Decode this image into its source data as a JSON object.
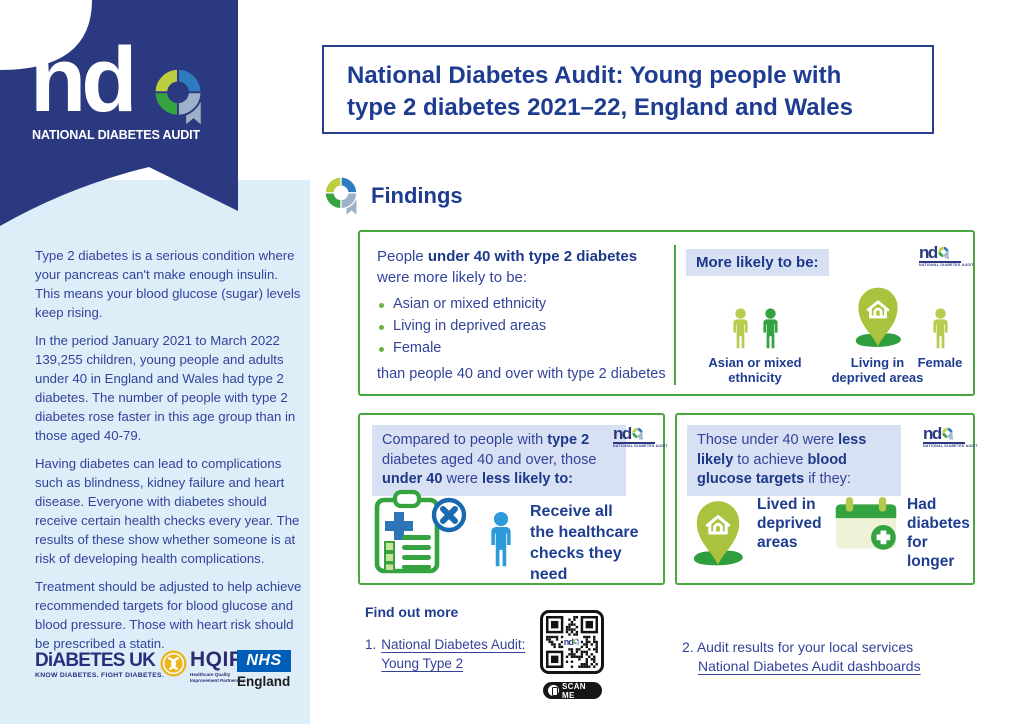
{
  "colors": {
    "navy": "#2b3a80",
    "text": "#33439a",
    "head": "#1e3d90",
    "light_blue": "#ddeef9",
    "highlight": "#d8e1f4",
    "green_border": "#4aa63f",
    "green_dark": "#35a33f",
    "green_light": "#b5c94c",
    "pin_green": "#a9c33e",
    "blue_icon": "#2d9ad9",
    "blue_dark": "#1a6ab1",
    "nhs_blue": "#005eb8",
    "hqip_gold": "#eab51e",
    "gray_quad": "#9fb0c9"
  },
  "brand": {
    "nd": "nd",
    "caption": "NATIONAL DIABETES AUDIT"
  },
  "header": {
    "line1": "National Diabetes Audit: Young people with",
    "line2": "type 2 diabetes 2021–22, England and Wales"
  },
  "findings_heading": "Findings",
  "sidebar": {
    "paragraphs": [
      "Type 2 diabetes is a serious condition where your pancreas can't make enough insulin. This means your blood glucose (sugar) levels keep rising.",
      "In the period January 2021 to March 2022 139,255 children, young people and adults under 40 in England and Wales had type 2 diabetes. The number of people with type 2 diabetes rose faster in this age group than in those aged 40-79.",
      "Having diabetes can lead to complications such as blindness, kidney failure and heart disease. Everyone with diabetes should receive certain health checks every year. The results of these show whether someone is at risk of developing health complications.",
      "Treatment should be adjusted to help achieve recommended targets for blood glucose and blood pressure. Those with heart risk should be prescribed a statin."
    ],
    "partners": {
      "diabetes_uk": {
        "name": "DiABETES UK",
        "tagline": "KNOW DIABETES. FIGHT DIABETES."
      },
      "hqip": {
        "name": "HQIP",
        "subtitle_line1": "Healthcare Quality",
        "subtitle_line2": "Improvement Partnership"
      },
      "nhs": {
        "name": "NHS",
        "region": "England"
      }
    }
  },
  "box_more_likely": {
    "intro": [
      "People ",
      "under 40 with type 2 diabetes"
    ],
    "intro_line2": "were more likely to be:",
    "bullets": [
      "Asian or mixed ethnicity",
      "Living in deprived areas",
      "Female"
    ],
    "footer": "than people 40 and over with type 2 diabetes",
    "heading": "More likely to be:",
    "labels": [
      {
        "line1": "Asian or mixed",
        "line2": "ethnicity"
      },
      {
        "line1": "Living in",
        "line2": "deprived areas"
      },
      {
        "line1": "Female",
        "line2": ""
      }
    ]
  },
  "box_checks": {
    "heading": [
      "Compared to people with ",
      "type 2",
      " diabetes aged 40 and over, those ",
      "under 40",
      " were ",
      "less likely to:"
    ],
    "label": [
      "Receive all",
      "the healthcare",
      "checks they need"
    ]
  },
  "box_glucose": {
    "heading": [
      "Those under 40 were ",
      "less likely",
      " to achieve ",
      "blood glucose targets",
      " if they:"
    ],
    "items": [
      {
        "line1": "Lived in",
        "line2": "deprived",
        "line3": "areas"
      },
      {
        "line1": "Had",
        "line2": "diabetes",
        "line3": "for longer"
      }
    ]
  },
  "footer": {
    "heading": "Find out more",
    "item1_number": "1.",
    "item1_link_line1": "National Diabetes Audit:",
    "item1_link_line2": "Young Type 2",
    "qr_label": "SCAN ME",
    "item2_number": "2.",
    "item2_text": "Audit results for your local services",
    "item2_link": "National Diabetes Audit dashboards"
  }
}
